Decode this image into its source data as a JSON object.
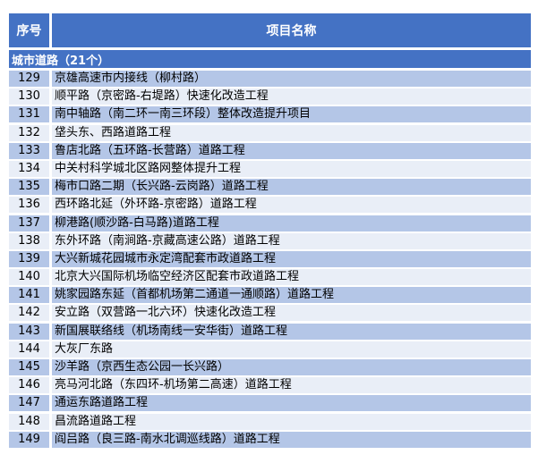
{
  "colors": {
    "header": "#4472C4",
    "row_odd": "#B4C6E7",
    "row_even": "#E9EEF7"
  },
  "header": {
    "col_index": "序号",
    "col_name": "项目名称"
  },
  "section": {
    "title": "城市道路（21个）"
  },
  "rows": [
    {
      "no": "129",
      "name": "京雄高速市内接线（柳村路）"
    },
    {
      "no": "130",
      "name": "顺平路（京密路-右堤路）快速化改造工程"
    },
    {
      "no": "131",
      "name": "南中轴路（南二环一南三环段）整体改造提升项目"
    },
    {
      "no": "132",
      "name": "垡头东、西路道路工程"
    },
    {
      "no": "133",
      "name": "鲁店北路（五环路-长营路）道路工程"
    },
    {
      "no": "134",
      "name": "中关村科学城北区路网整体提升工程"
    },
    {
      "no": "135",
      "name": "梅市口路二期（长兴路-云岗路）道路工程"
    },
    {
      "no": "136",
      "name": "西环路北延（外环路-京密路）道路工程"
    },
    {
      "no": "137",
      "name": "柳港路(顺沙路-白马路)道路工程"
    },
    {
      "no": "138",
      "name": "东外环路（南涧路-京藏高速公路）道路工程"
    },
    {
      "no": "139",
      "name": "大兴新城花园城市永定湾配套市政道路工程"
    },
    {
      "no": "140",
      "name": "北京大兴国际机场临空经济区配套市政道路工程"
    },
    {
      "no": "141",
      "name": "姚家园路东延（首都机场第二通道一通顺路）道路工程"
    },
    {
      "no": "142",
      "name": "安立路（双营路一北六环）快速化改造工程"
    },
    {
      "no": "143",
      "name": "新国展联络线（机场南线一安华街）道路工程"
    },
    {
      "no": "144",
      "name": "大灰厂东路"
    },
    {
      "no": "145",
      "name": "沙羊路（京西生态公园一长兴路）"
    },
    {
      "no": "146",
      "name": "亮马河北路（东四环-机场第二高速）道路工程"
    },
    {
      "no": "147",
      "name": "通运东路道路工程"
    },
    {
      "no": "148",
      "name": "昌流路道路工程"
    },
    {
      "no": "149",
      "name": "阎吕路（良三路-南水北调巡线路）道路工程"
    }
  ]
}
